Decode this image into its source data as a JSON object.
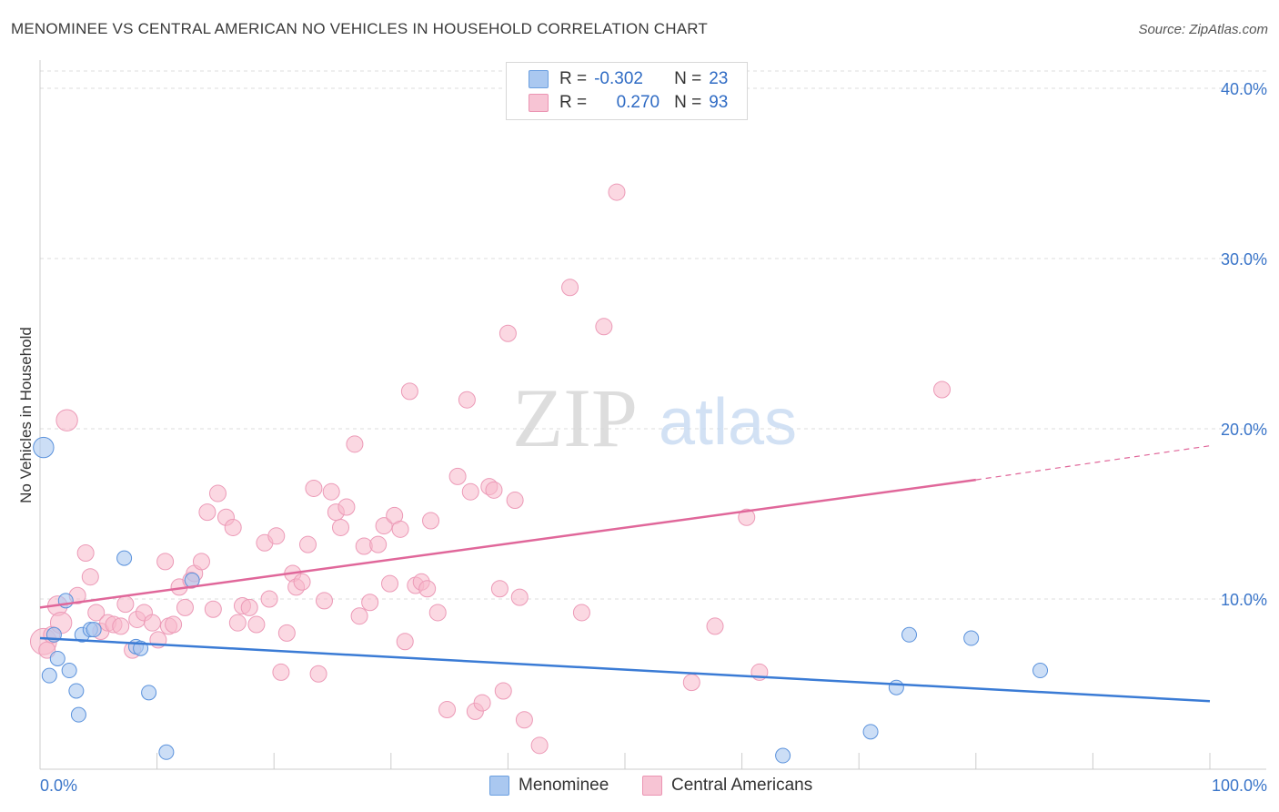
{
  "header": {
    "title": "MENOMINEE VS CENTRAL AMERICAN NO VEHICLES IN HOUSEHOLD CORRELATION CHART",
    "source": "Source: ZipAtlas.com"
  },
  "watermark": {
    "zip": "ZIP",
    "atlas": "atlas"
  },
  "legend": {
    "rows": [
      {
        "r_label": "R =",
        "r_value": "-0.302",
        "n_label": "N =",
        "n_value": "23",
        "color": "#aac8f0"
      },
      {
        "r_label": "R =",
        "r_value": "0.270",
        "n_label": "N =",
        "n_value": "93",
        "color": "#f7b8cb"
      }
    ]
  },
  "bottom_legend": {
    "menominee": "Menominee",
    "central": "Central Americans"
  },
  "chart_data": {
    "type": "scatter",
    "title": "MENOMINEE VS CENTRAL AMERICAN NO VEHICLES IN HOUSEHOLD CORRELATION CHART",
    "ylabel": "No Vehicles in Household",
    "xlabel": "",
    "xlim": [
      0,
      100
    ],
    "ylim": [
      0,
      40
    ],
    "x_tick_labels": [
      "0.0%",
      "100.0%"
    ],
    "y_ticks": [
      10,
      20,
      30,
      40
    ],
    "y_tick_labels": [
      "10.0%",
      "20.0%",
      "30.0%",
      "40.0%"
    ],
    "grid": true,
    "colors": {
      "menominee": "#3a7bd5",
      "central": "#e0679a",
      "menominee_fill": "#aac8f0",
      "central_fill": "#f7b8cb"
    },
    "series": [
      {
        "name": "Menominee",
        "trend": {
          "x0": 0,
          "y0": 7.7,
          "x1": 100,
          "y1": 4.0
        },
        "points": [
          [
            0.3,
            18.9,
            1.4
          ],
          [
            0.8,
            5.5,
            1
          ],
          [
            1.2,
            7.9,
            1
          ],
          [
            1.5,
            6.5,
            1
          ],
          [
            2.2,
            9.9,
            1
          ],
          [
            2.5,
            5.8,
            1
          ],
          [
            3.1,
            4.6,
            1
          ],
          [
            3.3,
            3.2,
            1
          ],
          [
            3.6,
            7.9,
            1
          ],
          [
            4.3,
            8.2,
            1
          ],
          [
            4.6,
            8.2,
            1
          ],
          [
            7.2,
            12.4,
            1
          ],
          [
            8.2,
            7.2,
            1
          ],
          [
            8.6,
            7.1,
            1
          ],
          [
            9.3,
            4.5,
            1
          ],
          [
            10.8,
            1.0,
            1
          ],
          [
            13.0,
            11.1,
            1
          ],
          [
            74.3,
            7.9,
            1
          ],
          [
            79.6,
            7.7,
            1
          ],
          [
            85.5,
            5.8,
            1
          ],
          [
            73.2,
            4.8,
            1
          ],
          [
            71.0,
            2.2,
            1
          ],
          [
            63.5,
            0.8,
            1
          ]
        ]
      },
      {
        "name": "Central Americans",
        "trend": {
          "x0": 0,
          "y0": 9.5,
          "x1": 80,
          "y1": 17.0,
          "dash_to_x": 100,
          "dash_to_y": 19.0
        },
        "points": [
          [
            0.3,
            7.5,
            1.6
          ],
          [
            0.6,
            7.0,
            1
          ],
          [
            1.0,
            7.9,
            1
          ],
          [
            1.5,
            9.6,
            1.2
          ],
          [
            1.8,
            8.6,
            1.3
          ],
          [
            2.3,
            20.5,
            1.3
          ],
          [
            3.2,
            10.2,
            1
          ],
          [
            3.9,
            12.7,
            1
          ],
          [
            4.3,
            11.3,
            1
          ],
          [
            4.8,
            9.2,
            1
          ],
          [
            5.2,
            8.1,
            1
          ],
          [
            5.8,
            8.6,
            1
          ],
          [
            6.3,
            8.5,
            1
          ],
          [
            6.9,
            8.4,
            1
          ],
          [
            7.3,
            9.7,
            1
          ],
          [
            7.9,
            7.0,
            1
          ],
          [
            8.3,
            8.8,
            1
          ],
          [
            8.9,
            9.2,
            1
          ],
          [
            9.6,
            8.6,
            1
          ],
          [
            10.1,
            7.6,
            1
          ],
          [
            10.7,
            12.2,
            1
          ],
          [
            11.0,
            8.4,
            1
          ],
          [
            11.4,
            8.5,
            1
          ],
          [
            11.9,
            10.7,
            1
          ],
          [
            12.4,
            9.5,
            1
          ],
          [
            12.9,
            11.1,
            1
          ],
          [
            13.2,
            11.5,
            1
          ],
          [
            13.8,
            12.2,
            1
          ],
          [
            14.3,
            15.1,
            1
          ],
          [
            14.8,
            9.4,
            1
          ],
          [
            15.2,
            16.2,
            1
          ],
          [
            15.9,
            14.8,
            1
          ],
          [
            16.5,
            14.2,
            1
          ],
          [
            16.9,
            8.6,
            1
          ],
          [
            17.3,
            9.6,
            1
          ],
          [
            17.9,
            9.5,
            1
          ],
          [
            18.5,
            8.5,
            1
          ],
          [
            19.2,
            13.3,
            1
          ],
          [
            19.6,
            10.0,
            1
          ],
          [
            20.2,
            13.7,
            1
          ],
          [
            20.6,
            5.7,
            1
          ],
          [
            21.1,
            8.0,
            1
          ],
          [
            21.6,
            11.5,
            1
          ],
          [
            21.9,
            10.7,
            1
          ],
          [
            22.4,
            11.0,
            1
          ],
          [
            22.9,
            13.2,
            1
          ],
          [
            23.4,
            16.5,
            1
          ],
          [
            23.8,
            5.6,
            1
          ],
          [
            24.3,
            9.9,
            1
          ],
          [
            24.9,
            16.3,
            1
          ],
          [
            25.3,
            15.1,
            1
          ],
          [
            25.7,
            14.2,
            1
          ],
          [
            26.2,
            15.4,
            1
          ],
          [
            26.9,
            19.1,
            1
          ],
          [
            27.3,
            9.0,
            1
          ],
          [
            27.7,
            13.1,
            1
          ],
          [
            28.2,
            9.8,
            1
          ],
          [
            28.9,
            13.2,
            1
          ],
          [
            29.4,
            14.3,
            1
          ],
          [
            29.9,
            10.9,
            1
          ],
          [
            30.3,
            14.9,
            1
          ],
          [
            30.8,
            14.1,
            1
          ],
          [
            31.2,
            7.5,
            1
          ],
          [
            31.6,
            22.2,
            1
          ],
          [
            32.1,
            10.8,
            1
          ],
          [
            32.6,
            11.0,
            1
          ],
          [
            33.1,
            10.6,
            1
          ],
          [
            33.4,
            14.6,
            1
          ],
          [
            34.0,
            9.2,
            1
          ],
          [
            34.8,
            3.5,
            1
          ],
          [
            35.7,
            17.2,
            1
          ],
          [
            36.5,
            21.7,
            1
          ],
          [
            36.8,
            16.3,
            1
          ],
          [
            37.2,
            3.4,
            1
          ],
          [
            37.8,
            3.9,
            1
          ],
          [
            38.4,
            16.6,
            1
          ],
          [
            38.8,
            16.4,
            1
          ],
          [
            39.3,
            10.6,
            1
          ],
          [
            39.6,
            4.6,
            1
          ],
          [
            40.0,
            25.6,
            1
          ],
          [
            40.6,
            15.8,
            1
          ],
          [
            41.0,
            10.1,
            1
          ],
          [
            41.4,
            2.9,
            1
          ],
          [
            42.7,
            1.4,
            1
          ],
          [
            45.3,
            28.3,
            1
          ],
          [
            46.3,
            9.2,
            1
          ],
          [
            48.2,
            26.0,
            1
          ],
          [
            49.3,
            33.9,
            1
          ],
          [
            55.7,
            5.1,
            1
          ],
          [
            57.7,
            8.4,
            1
          ],
          [
            60.4,
            14.8,
            1
          ],
          [
            61.5,
            5.7,
            1
          ],
          [
            77.1,
            22.3,
            1
          ]
        ]
      }
    ]
  }
}
